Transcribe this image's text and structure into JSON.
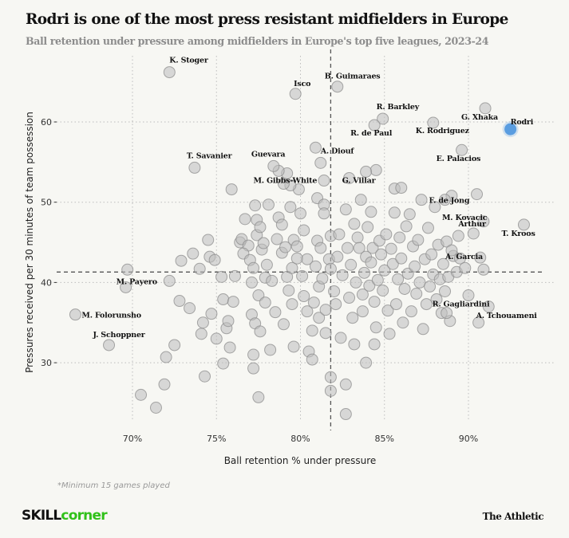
{
  "header": {
    "title": "Rodri is one of the most press resistant midfielders in Europe",
    "subtitle": "Ball retention under pressure among midfielders in Europe's top five leagues, 2023-24"
  },
  "footer": {
    "note": "*Minimum 15 games played",
    "logo_left_a": "SKILL",
    "logo_left_b": "corner",
    "logo_right": "The Athletic"
  },
  "colors": {
    "background": "#f7f7f3",
    "point": "#d4d4d4",
    "highlight": "#5a9de0"
  },
  "chart_data": {
    "type": "scatter",
    "title": "Rodri is one of the most press resistant midfielders in Europe",
    "subtitle": "Ball retention under pressure among midfielders in Europe's top five leagues, 2023-24",
    "xlabel": "Ball retention % under pressure",
    "ylabel": "Pressures received per 30 minutes of team possession",
    "xlim": [
      66,
      95
    ],
    "ylim": [
      22,
      68
    ],
    "xticks": [
      {
        "v": 70,
        "label": "70%"
      },
      {
        "v": 75,
        "label": "75%"
      },
      {
        "v": 80,
        "label": "80%"
      },
      {
        "v": 85,
        "label": "85%"
      },
      {
        "v": 90,
        "label": "90%"
      }
    ],
    "yticks": [
      {
        "v": 30,
        "label": "30"
      },
      {
        "v": 40,
        "label": "40"
      },
      {
        "v": 50,
        "label": "50"
      },
      {
        "v": 60,
        "label": "60"
      }
    ],
    "grid": "dotted",
    "reference_lines": {
      "x_mean": 81.8,
      "y_mean": 41.3
    },
    "labeled_points": [
      {
        "name": "K. Stoger",
        "x": 72.2,
        "y": 66.2,
        "lx": 0,
        "ly": -12
      },
      {
        "name": "Isco",
        "x": 79.7,
        "y": 63.5,
        "lx": -2,
        "ly": -10
      },
      {
        "name": "B. Guimaraes",
        "x": 82.2,
        "y": 64.4,
        "lx": -16,
        "ly": -10
      },
      {
        "name": "R. Barkley",
        "x": 84.9,
        "y": 60.4,
        "lx": -8,
        "ly": -12
      },
      {
        "name": "R. de Paul",
        "x": 84.4,
        "y": 59.6,
        "lx": -30,
        "ly": 13
      },
      {
        "name": "K. Rodriguez",
        "x": 87.9,
        "y": 59.9,
        "lx": -22,
        "ly": 13
      },
      {
        "name": "G. Xhaka",
        "x": 91.0,
        "y": 61.7,
        "lx": -30,
        "ly": 14
      },
      {
        "name": "Rodri",
        "x": 92.5,
        "y": 59.1,
        "lx": 0,
        "ly": -6,
        "highlight": true
      },
      {
        "name": "T. Savanier",
        "x": 73.7,
        "y": 54.3,
        "lx": -10,
        "ly": -12
      },
      {
        "name": "Guevara",
        "x": 78.4,
        "y": 54.5,
        "lx": -28,
        "ly": -12
      },
      {
        "name": "A. Diouf",
        "x": 81.2,
        "y": 54.9,
        "lx": 0,
        "ly": -12
      },
      {
        "name": "E. Palacios",
        "x": 89.6,
        "y": 56.5,
        "lx": -32,
        "ly": 14
      },
      {
        "name": "M. Gibbs-White",
        "x": 79.0,
        "y": 52.3,
        "lx": -38,
        "ly": -1
      },
      {
        "name": "G. Villar",
        "x": 83.9,
        "y": 53.8,
        "lx": -30,
        "ly": 14
      },
      {
        "name": "F. de Jong",
        "x": 88.6,
        "y": 50.3,
        "lx": -20,
        "ly": 4
      },
      {
        "name": "M. Kovacic",
        "x": 90.9,
        "y": 47.6,
        "lx": -52,
        "ly": -2
      },
      {
        "name": "Arthur",
        "x": 89.4,
        "y": 45.8,
        "lx": 0,
        "ly": -12
      },
      {
        "name": "T. Kroos",
        "x": 93.3,
        "y": 47.2,
        "lx": -28,
        "ly": 14
      },
      {
        "name": "A. Garcia",
        "x": 89.0,
        "y": 44.0,
        "lx": -8,
        "ly": 11
      },
      {
        "name": "M. Payero",
        "x": 69.6,
        "y": 39.4,
        "lx": -12,
        "ly": -4
      },
      {
        "name": "M. Folorunsho",
        "x": 66.6,
        "y": 36.0,
        "lx": 8,
        "ly": 4
      },
      {
        "name": "J. Schoppner",
        "x": 68.6,
        "y": 32.2,
        "lx": -20,
        "ly": -10
      },
      {
        "name": "R. Gagliardini",
        "x": 88.7,
        "y": 36.2,
        "lx": -18,
        "ly": -8
      },
      {
        "name": "A. Tchouameni",
        "x": 90.6,
        "y": 35.0,
        "lx": -3,
        "ly": -6
      }
    ],
    "other_points": [
      [
        69.7,
        41.6
      ],
      [
        70.5,
        26.0
      ],
      [
        71.4,
        24.4
      ],
      [
        71.9,
        27.3
      ],
      [
        72.0,
        30.7
      ],
      [
        72.5,
        32.2
      ],
      [
        72.8,
        37.7
      ],
      [
        72.9,
        42.7
      ],
      [
        72.2,
        40.2
      ],
      [
        73.4,
        36.8
      ],
      [
        73.6,
        43.6
      ],
      [
        74.0,
        41.7
      ],
      [
        74.1,
        33.6
      ],
      [
        74.3,
        28.3
      ],
      [
        74.5,
        45.3
      ],
      [
        74.6,
        43.2
      ],
      [
        74.7,
        36.1
      ],
      [
        74.2,
        35.0
      ],
      [
        74.9,
        42.8
      ],
      [
        75.0,
        33.0
      ],
      [
        75.3,
        40.7
      ],
      [
        75.4,
        37.9
      ],
      [
        75.4,
        29.9
      ],
      [
        75.6,
        34.3
      ],
      [
        75.8,
        31.9
      ],
      [
        75.9,
        51.6
      ],
      [
        75.7,
        35.2
      ],
      [
        76.0,
        37.6
      ],
      [
        76.1,
        40.8
      ],
      [
        76.4,
        45.0
      ],
      [
        76.5,
        45.4
      ],
      [
        76.7,
        47.9
      ],
      [
        76.9,
        44.6
      ],
      [
        76.6,
        43.6
      ],
      [
        77.0,
        42.8
      ],
      [
        77.1,
        36.0
      ],
      [
        77.1,
        40.0
      ],
      [
        77.2,
        41.8
      ],
      [
        77.3,
        49.6
      ],
      [
        77.4,
        45.9
      ],
      [
        77.4,
        47.8
      ],
      [
        77.3,
        34.9
      ],
      [
        77.2,
        31.0
      ],
      [
        77.2,
        29.3
      ],
      [
        77.5,
        25.7
      ],
      [
        77.6,
        33.9
      ],
      [
        77.5,
        38.4
      ],
      [
        77.7,
        44.1
      ],
      [
        77.8,
        44.9
      ],
      [
        77.6,
        46.9
      ],
      [
        77.9,
        40.6
      ],
      [
        77.9,
        37.5
      ],
      [
        78.0,
        42.2
      ],
      [
        78.3,
        40.2
      ],
      [
        78.1,
        49.7
      ],
      [
        78.2,
        31.6
      ],
      [
        78.5,
        36.3
      ],
      [
        78.6,
        45.4
      ],
      [
        78.7,
        48.1
      ],
      [
        78.9,
        43.7
      ],
      [
        78.9,
        47.2
      ],
      [
        79.0,
        34.8
      ],
      [
        79.1,
        44.4
      ],
      [
        79.2,
        53.6
      ],
      [
        79.2,
        40.7
      ],
      [
        79.3,
        39.0
      ],
      [
        79.4,
        49.4
      ],
      [
        79.5,
        41.8
      ],
      [
        79.5,
        37.3
      ],
      [
        79.6,
        32.0
      ],
      [
        79.6,
        45.3
      ],
      [
        79.8,
        44.5
      ],
      [
        79.8,
        43.0
      ],
      [
        79.9,
        51.6
      ],
      [
        80.0,
        48.6
      ],
      [
        80.1,
        40.8
      ],
      [
        80.2,
        38.3
      ],
      [
        80.2,
        46.5
      ],
      [
        80.4,
        42.9
      ],
      [
        80.4,
        36.4
      ],
      [
        80.5,
        31.4
      ],
      [
        80.7,
        30.4
      ],
      [
        80.7,
        34.0
      ],
      [
        80.8,
        37.5
      ],
      [
        80.9,
        42.0
      ],
      [
        81.0,
        45.2
      ],
      [
        81.0,
        50.5
      ],
      [
        81.1,
        39.5
      ],
      [
        81.1,
        35.6
      ],
      [
        81.2,
        44.3
      ],
      [
        81.3,
        40.5
      ],
      [
        81.4,
        49.7
      ],
      [
        81.4,
        48.6
      ],
      [
        81.5,
        36.6
      ],
      [
        81.5,
        33.7
      ],
      [
        81.7,
        42.9
      ],
      [
        81.8,
        41.7
      ],
      [
        81.8,
        45.8
      ],
      [
        81.8,
        28.2
      ],
      [
        81.8,
        26.5
      ],
      [
        82.0,
        38.9
      ],
      [
        82.1,
        37.3
      ],
      [
        82.2,
        43.2
      ],
      [
        82.3,
        46.0
      ],
      [
        82.4,
        33.1
      ],
      [
        82.5,
        40.9
      ],
      [
        82.7,
        27.3
      ],
      [
        82.7,
        23.6
      ],
      [
        82.7,
        49.1
      ],
      [
        82.8,
        44.3
      ],
      [
        82.9,
        38.1
      ],
      [
        83.0,
        42.2
      ],
      [
        83.1,
        35.6
      ],
      [
        83.2,
        47.3
      ],
      [
        83.2,
        32.3
      ],
      [
        83.3,
        40.0
      ],
      [
        83.4,
        45.6
      ],
      [
        83.5,
        44.3
      ],
      [
        83.6,
        50.3
      ],
      [
        83.7,
        38.5
      ],
      [
        83.7,
        36.4
      ],
      [
        83.8,
        41.2
      ],
      [
        83.9,
        43.2
      ],
      [
        83.9,
        30.0
      ],
      [
        84.0,
        46.9
      ],
      [
        84.1,
        39.6
      ],
      [
        84.2,
        42.5
      ],
      [
        84.2,
        48.8
      ],
      [
        84.3,
        44.3
      ],
      [
        84.4,
        37.6
      ],
      [
        84.4,
        32.3
      ],
      [
        84.5,
        34.4
      ],
      [
        84.6,
        40.3
      ],
      [
        84.7,
        45.2
      ],
      [
        84.8,
        43.5
      ],
      [
        84.9,
        39.0
      ],
      [
        85.0,
        41.5
      ],
      [
        85.1,
        46.0
      ],
      [
        85.2,
        36.5
      ],
      [
        85.3,
        33.6
      ],
      [
        85.4,
        44.2
      ],
      [
        85.5,
        42.3
      ],
      [
        85.6,
        51.7
      ],
      [
        85.6,
        48.7
      ],
      [
        85.7,
        37.3
      ],
      [
        85.8,
        40.4
      ],
      [
        85.9,
        45.6
      ],
      [
        86.0,
        43.0
      ],
      [
        86.1,
        35.0
      ],
      [
        86.2,
        39.2
      ],
      [
        86.3,
        47.0
      ],
      [
        86.4,
        41.1
      ],
      [
        86.5,
        48.5
      ],
      [
        86.6,
        36.4
      ],
      [
        86.7,
        44.5
      ],
      [
        86.8,
        42.0
      ],
      [
        86.9,
        38.6
      ],
      [
        87.0,
        45.3
      ],
      [
        87.1,
        40.0
      ],
      [
        87.2,
        50.3
      ],
      [
        87.3,
        34.2
      ],
      [
        87.4,
        42.9
      ],
      [
        87.5,
        37.3
      ],
      [
        87.6,
        46.8
      ],
      [
        87.7,
        39.5
      ],
      [
        87.8,
        43.5
      ],
      [
        87.9,
        41.0
      ],
      [
        88.0,
        49.4
      ],
      [
        88.1,
        37.9
      ],
      [
        88.2,
        44.7
      ],
      [
        88.3,
        40.4
      ],
      [
        88.4,
        36.2
      ],
      [
        88.5,
        42.3
      ],
      [
        88.6,
        38.9
      ],
      [
        88.7,
        45.1
      ],
      [
        88.8,
        40.7
      ],
      [
        88.9,
        35.2
      ],
      [
        89.0,
        50.8
      ],
      [
        89.1,
        43.3
      ],
      [
        89.3,
        41.3
      ],
      [
        89.5,
        43.0
      ],
      [
        89.8,
        41.8
      ],
      [
        90.0,
        38.4
      ],
      [
        90.3,
        46.1
      ],
      [
        90.5,
        51.0
      ],
      [
        90.7,
        43.1
      ],
      [
        90.9,
        41.6
      ],
      [
        91.2,
        37.0
      ],
      [
        80.9,
        56.8
      ],
      [
        78.7,
        53.9
      ],
      [
        79.4,
        52.1
      ],
      [
        81.4,
        52.7
      ],
      [
        82.9,
        53.0
      ],
      [
        84.5,
        54.0
      ],
      [
        86.0,
        51.8
      ]
    ]
  }
}
